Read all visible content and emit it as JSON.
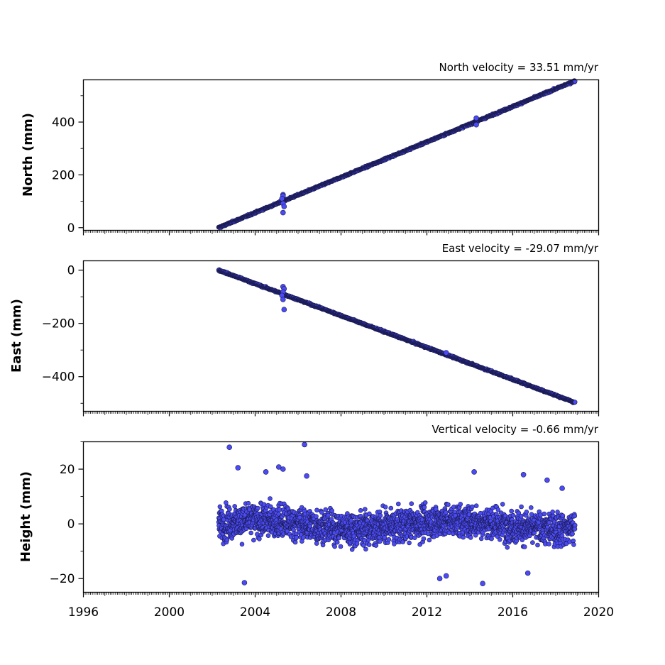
{
  "chart_data": [
    {
      "type": "scatter",
      "title": "North velocity = 33.51 mm/yr",
      "xlabel": "",
      "ylabel": "North (mm)",
      "xlim": [
        1996,
        2020
      ],
      "ylim": [
        -10,
        560
      ],
      "y_ticks": [
        "0",
        "200",
        "400"
      ],
      "y_tick_values": [
        0,
        200,
        400
      ],
      "series": [
        {
          "start_year": 2002.3,
          "end_year": 2018.9,
          "start_value": 0,
          "end_value": 556,
          "outliers": [
            [
              2005.3,
              125
            ],
            [
              2005.3,
              120
            ],
            [
              2005.25,
              110
            ],
            [
              2005.3,
              92
            ],
            [
              2005.35,
              80
            ],
            [
              2005.3,
              57
            ],
            [
              2014.3,
              415
            ],
            [
              2014.3,
              390
            ]
          ]
        }
      ],
      "grid": false
    },
    {
      "type": "scatter",
      "title": "East velocity = -29.07 mm/yr",
      "xlabel": "",
      "ylabel": "East (mm)",
      "xlim": [
        1996,
        2020
      ],
      "ylim": [
        -530,
        35
      ],
      "y_ticks": [
        "0",
        "−200",
        "−400"
      ],
      "y_tick_values": [
        0,
        -200,
        -400
      ],
      "series": [
        {
          "start_year": 2002.3,
          "end_year": 2018.9,
          "start_value": 0,
          "end_value": -497,
          "outliers": [
            [
              2005.3,
              -62
            ],
            [
              2005.35,
              -70
            ],
            [
              2005.3,
              -82
            ],
            [
              2005.25,
              -95
            ],
            [
              2005.3,
              -110
            ],
            [
              2005.35,
              -148
            ],
            [
              2012.9,
              -310
            ]
          ]
        }
      ],
      "grid": false
    },
    {
      "type": "scatter",
      "title": "Vertical velocity = -0.66 mm/yr",
      "xlabel": "",
      "ylabel": "Height (mm)",
      "xlim": [
        1996,
        2020
      ],
      "ylim": [
        -25,
        30
      ],
      "y_ticks": [
        "20",
        "0",
        "−20"
      ],
      "y_tick_values": [
        20,
        0,
        -20
      ],
      "series": [
        {
          "start_year": 2002.3,
          "end_year": 2018.9,
          "mean": 0,
          "spread": 5,
          "outliers": [
            [
              2002.8,
              28
            ],
            [
              2003.2,
              20.5
            ],
            [
              2003.5,
              -21.5
            ],
            [
              2004.5,
              19
            ],
            [
              2005.1,
              20.8
            ],
            [
              2005.3,
              20
            ],
            [
              2006.3,
              29
            ],
            [
              2006.4,
              17.5
            ],
            [
              2012.6,
              -20
            ],
            [
              2012.9,
              -19
            ],
            [
              2014.2,
              19
            ],
            [
              2014.6,
              -21.8
            ],
            [
              2016.5,
              18
            ],
            [
              2016.7,
              -18
            ],
            [
              2018.3,
              13
            ],
            [
              2017.6,
              16
            ]
          ]
        }
      ],
      "grid": false
    }
  ],
  "x_tick_labels": [
    "1996",
    "2000",
    "2004",
    "2008",
    "2012",
    "2016",
    "2020"
  ],
  "x_tick_values": [
    1996,
    2000,
    2004,
    2008,
    2012,
    2016,
    2020
  ],
  "colors": {
    "marker_fill": "#4b4bf5",
    "marker_edge": "#1a1a50",
    "axis": "#000000"
  }
}
